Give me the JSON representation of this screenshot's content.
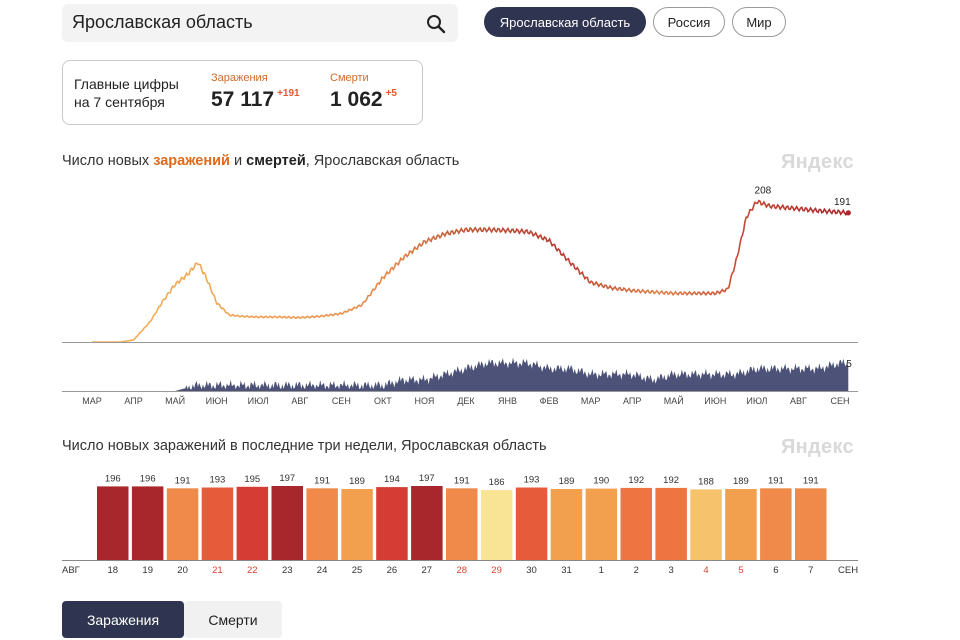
{
  "search": {
    "value": "Ярославская область"
  },
  "chips": [
    "Ярославская область",
    "Россия",
    "Мир"
  ],
  "summary": {
    "date_line1": "Главные цифры",
    "date_line2": "на 7 сентября",
    "infections": {
      "label": "Заражения",
      "value": "57 117",
      "delta": "+191"
    },
    "deaths": {
      "label": "Смерти",
      "value": "1 062",
      "delta": "+5"
    }
  },
  "chart1": {
    "title_pre": "Число новых ",
    "title_acc": "заражений",
    "title_mid": " и ",
    "title_b": "смертей",
    "title_post": ", Ярославская область",
    "brand": "Яндекс",
    "peak_label": "208",
    "last_label": "191",
    "deaths_last_label": "5",
    "months": [
      "МАР",
      "АПР",
      "МАЙ",
      "ИЮН",
      "ИЮЛ",
      "АВГ",
      "СЕН",
      "ОКТ",
      "НОЯ",
      "ДЕК",
      "ЯНВ",
      "ФЕВ",
      "МАР",
      "АПР",
      "МАЙ",
      "ИЮН",
      "ИЮЛ",
      "АВГ",
      "СЕН"
    ]
  },
  "chart2": {
    "title": "Число новых заражений в последние три недели, Ярославская область",
    "brand": "Яндекс",
    "start_month": "АВГ",
    "end_month": "СЕН"
  },
  "chart_data": [
    {
      "type": "line",
      "title": "Число новых заражений и смертей, Ярославская область",
      "xlabel": "",
      "ylabel": "",
      "x_ticks": [
        "МАР",
        "АПР",
        "МАЙ",
        "ИЮН",
        "ИЮЛ",
        "АВГ",
        "СЕН",
        "ОКТ",
        "НОЯ",
        "ДЕК",
        "ЯНВ",
        "ФЕВ",
        "МАР",
        "АПР",
        "МАЙ",
        "ИЮН",
        "ИЮЛ",
        "АВГ",
        "СЕН"
      ],
      "ylim": [
        0,
        210
      ],
      "series": [
        {
          "name": "Заражения",
          "points": [
            [
              0,
              0
            ],
            [
              0.7,
              0
            ],
            [
              1.0,
              3
            ],
            [
              1.4,
              30
            ],
            [
              1.7,
              60
            ],
            [
              2.0,
              85
            ],
            [
              2.3,
              100
            ],
            [
              2.55,
              118
            ],
            [
              2.75,
              95
            ],
            [
              3.0,
              58
            ],
            [
              3.3,
              40
            ],
            [
              3.6,
              38
            ],
            [
              4.0,
              37
            ],
            [
              4.5,
              37
            ],
            [
              5.0,
              36
            ],
            [
              5.5,
              38
            ],
            [
              6.0,
              42
            ],
            [
              6.5,
              55
            ],
            [
              7.0,
              95
            ],
            [
              7.5,
              125
            ],
            [
              8.0,
              148
            ],
            [
              8.5,
              160
            ],
            [
              9.0,
              166
            ],
            [
              9.5,
              166
            ],
            [
              10.0,
              165
            ],
            [
              10.5,
              163
            ],
            [
              11.0,
              150
            ],
            [
              11.5,
              118
            ],
            [
              12.0,
              88
            ],
            [
              12.5,
              80
            ],
            [
              13.0,
              76
            ],
            [
              13.5,
              74
            ],
            [
              14.0,
              72
            ],
            [
              14.5,
              72
            ],
            [
              15.0,
              72
            ],
            [
              15.3,
              78
            ],
            [
              15.5,
              120
            ],
            [
              15.75,
              185
            ],
            [
              16.0,
              208
            ],
            [
              16.3,
              201
            ],
            [
              17.0,
              197
            ],
            [
              17.5,
              194
            ],
            [
              18.0,
              192
            ],
            [
              18.2,
              191
            ]
          ]
        },
        {
          "name": "Смерти",
          "points": [
            [
              0,
              0
            ],
            [
              2.0,
              0
            ],
            [
              2.5,
              1
            ],
            [
              3.0,
              1
            ],
            [
              4.0,
              1
            ],
            [
              5.0,
              1
            ],
            [
              6.0,
              1
            ],
            [
              7.0,
              1
            ],
            [
              7.5,
              2
            ],
            [
              8.0,
              2
            ],
            [
              8.5,
              3
            ],
            [
              9.0,
              4
            ],
            [
              9.5,
              5
            ],
            [
              10.0,
              5
            ],
            [
              10.5,
              5
            ],
            [
              11.0,
              4
            ],
            [
              11.5,
              4
            ],
            [
              12.0,
              3
            ],
            [
              12.5,
              3
            ],
            [
              13.0,
              3
            ],
            [
              13.5,
              2
            ],
            [
              14.0,
              3
            ],
            [
              14.5,
              3
            ],
            [
              15.0,
              3
            ],
            [
              15.5,
              3
            ],
            [
              16.0,
              4
            ],
            [
              16.5,
              4
            ],
            [
              17.0,
              4
            ],
            [
              17.5,
              4
            ],
            [
              18.0,
              5
            ],
            [
              18.2,
              5
            ]
          ]
        }
      ],
      "annotations": [
        {
          "x": 16.0,
          "y": 208,
          "text": "208"
        },
        {
          "x": 18.2,
          "y": 191,
          "text": "191"
        },
        {
          "x": 18.2,
          "y": 5,
          "text": "5",
          "series": "Смерти"
        }
      ]
    },
    {
      "type": "bar",
      "title": "Число новых заражений в последние три недели, Ярославская область",
      "categories": [
        "18",
        "19",
        "20",
        "21",
        "22",
        "23",
        "24",
        "25",
        "26",
        "27",
        "28",
        "29",
        "30",
        "31",
        "1",
        "2",
        "3",
        "4",
        "5",
        "6",
        "7"
      ],
      "weekend": [
        false,
        false,
        false,
        true,
        true,
        false,
        false,
        false,
        false,
        false,
        true,
        true,
        false,
        false,
        false,
        false,
        false,
        true,
        true,
        false,
        false
      ],
      "values": [
        196,
        196,
        191,
        193,
        195,
        197,
        191,
        189,
        194,
        197,
        191,
        186,
        193,
        189,
        190,
        192,
        192,
        188,
        189,
        191,
        191
      ],
      "colors": [
        "#a8272c",
        "#a8272c",
        "#ef8a4a",
        "#e65c3a",
        "#d53c33",
        "#a8272c",
        "#ef8a4a",
        "#f2a04e",
        "#d53c33",
        "#a8272c",
        "#ef8a4a",
        "#f9e394",
        "#e65c3a",
        "#f2a04e",
        "#f2a04e",
        "#ee7542",
        "#ee7542",
        "#f6c26c",
        "#f2a04e",
        "#ef8a4a",
        "#ef8a4a"
      ],
      "x_start": "АВГ",
      "x_end": "СЕН"
    }
  ],
  "tabs": {
    "active": "Заражения",
    "inactive": "Смерти"
  }
}
